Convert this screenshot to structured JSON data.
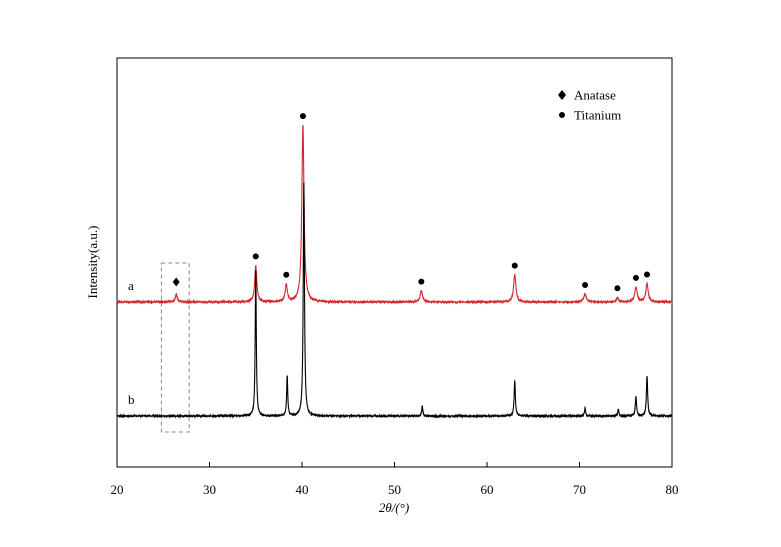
{
  "chart_data": {
    "type": "line",
    "xlabel": "2θ/(°)",
    "ylabel": "Intensity(a.u.)",
    "xlim": [
      20,
      80
    ],
    "x_ticks": [
      20,
      30,
      40,
      50,
      60,
      70,
      80
    ],
    "grid": false,
    "legend": {
      "placement": "top-right",
      "entries": [
        {
          "marker": "diamond",
          "label": "Anatase"
        },
        {
          "marker": "circle",
          "label": "Titanium"
        }
      ]
    },
    "series": [
      {
        "label_text": "a",
        "color": "#d62728",
        "baseline": 1.0,
        "peaks": [
          {
            "x": 26.4,
            "height": 0.07,
            "width": 0.12
          },
          {
            "x": 35.0,
            "height": 0.32,
            "width": 0.13
          },
          {
            "x": 38.3,
            "height": 0.15,
            "width": 0.14
          },
          {
            "x": 40.1,
            "height": 1.55,
            "width": 0.14
          },
          {
            "x": 52.9,
            "height": 0.1,
            "width": 0.15
          },
          {
            "x": 63.0,
            "height": 0.24,
            "width": 0.15
          },
          {
            "x": 70.6,
            "height": 0.07,
            "width": 0.16
          },
          {
            "x": 74.1,
            "height": 0.04,
            "width": 0.12
          },
          {
            "x": 76.1,
            "height": 0.13,
            "width": 0.16
          },
          {
            "x": 77.3,
            "height": 0.16,
            "width": 0.15
          }
        ]
      },
      {
        "label_text": "b",
        "color": "#000000",
        "baseline": 0.0,
        "peaks": [
          {
            "x": 35.0,
            "height": 1.28,
            "width": 0.07
          },
          {
            "x": 38.4,
            "height": 0.35,
            "width": 0.07
          },
          {
            "x": 40.2,
            "height": 2.05,
            "width": 0.08
          },
          {
            "x": 53.0,
            "height": 0.09,
            "width": 0.07
          },
          {
            "x": 63.0,
            "height": 0.31,
            "width": 0.08
          },
          {
            "x": 70.6,
            "height": 0.07,
            "width": 0.07
          },
          {
            "x": 74.2,
            "height": 0.06,
            "width": 0.07
          },
          {
            "x": 76.1,
            "height": 0.17,
            "width": 0.08
          },
          {
            "x": 77.3,
            "height": 0.35,
            "width": 0.08
          }
        ]
      }
    ],
    "annotations": {
      "anatase_markers": [
        26.4
      ],
      "titanium_markers": [
        35.0,
        38.3,
        40.1,
        52.9,
        63.0,
        70.6,
        74.1,
        76.1,
        77.3
      ],
      "highlight_box": {
        "x_range": [
          24.8,
          27.8
        ],
        "style": "dashed",
        "color": "#888888"
      }
    }
  }
}
